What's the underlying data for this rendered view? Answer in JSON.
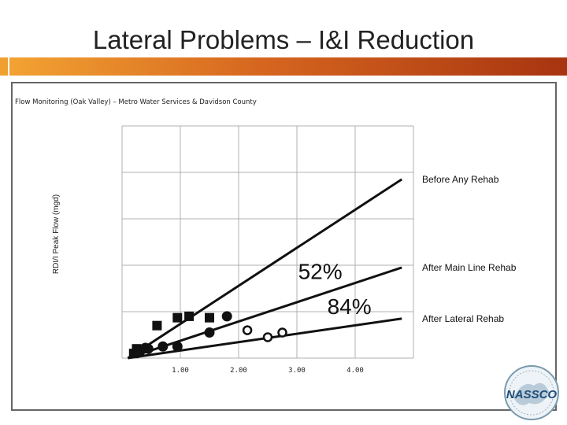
{
  "slide": {
    "title": "Lateral Problems – I&I Reduction",
    "panel_caption": "Flow Monitoring (Oak Valley) – Metro Water Services & Davidson County",
    "logo_text": "NASSCO"
  },
  "colors": {
    "accent_start": "#f2a232",
    "accent_end": "#a83410",
    "line": "#111111",
    "grid": "#b0b0b0"
  },
  "chart_data": {
    "type": "scatter",
    "title": "",
    "xlabel": "",
    "ylabel": "RDI/I Peak Flow (mgd)",
    "x_ticks": [
      "1.00",
      "2.00",
      "3.00",
      "4.00"
    ],
    "x_tick_values": [
      1,
      2,
      3,
      4
    ],
    "xlim": [
      0,
      5
    ],
    "ylim": [
      0,
      5
    ],
    "grid": true,
    "series": [
      {
        "name": "Before Any Rehab",
        "marker": "square",
        "points": [
          [
            0.25,
            0.2
          ],
          [
            0.6,
            0.7
          ],
          [
            0.95,
            0.87
          ],
          [
            1.15,
            0.9
          ],
          [
            1.5,
            0.87
          ],
          [
            0.2,
            0.1
          ],
          [
            0.3,
            0.15
          ]
        ]
      },
      {
        "name": "After Main Line Rehab",
        "marker": "circle",
        "points": [
          [
            0.3,
            0.15
          ],
          [
            0.4,
            0.22
          ],
          [
            0.45,
            0.2
          ],
          [
            0.7,
            0.25
          ],
          [
            0.95,
            0.25
          ],
          [
            1.5,
            0.55
          ],
          [
            1.8,
            0.9
          ]
        ]
      },
      {
        "name": "After Lateral Rehab",
        "marker": "open-circle",
        "points": [
          [
            2.15,
            0.6
          ],
          [
            2.5,
            0.45
          ],
          [
            2.75,
            0.55
          ]
        ]
      }
    ],
    "trend_lines": [
      {
        "name": "Before Any Rehab",
        "from": [
          0.1,
          0.0
        ],
        "to": [
          4.8,
          3.85
        ]
      },
      {
        "name": "After Main Line Rehab",
        "from": [
          0.1,
          0.0
        ],
        "to": [
          4.8,
          1.95
        ]
      },
      {
        "name": "After Lateral Rehab",
        "from": [
          0.1,
          0.0
        ],
        "to": [
          4.8,
          0.85
        ]
      }
    ],
    "annotations": [
      {
        "text": "52%",
        "x": 3.4,
        "y": 1.7
      },
      {
        "text": "84%",
        "x": 3.9,
        "y": 0.95
      }
    ]
  }
}
